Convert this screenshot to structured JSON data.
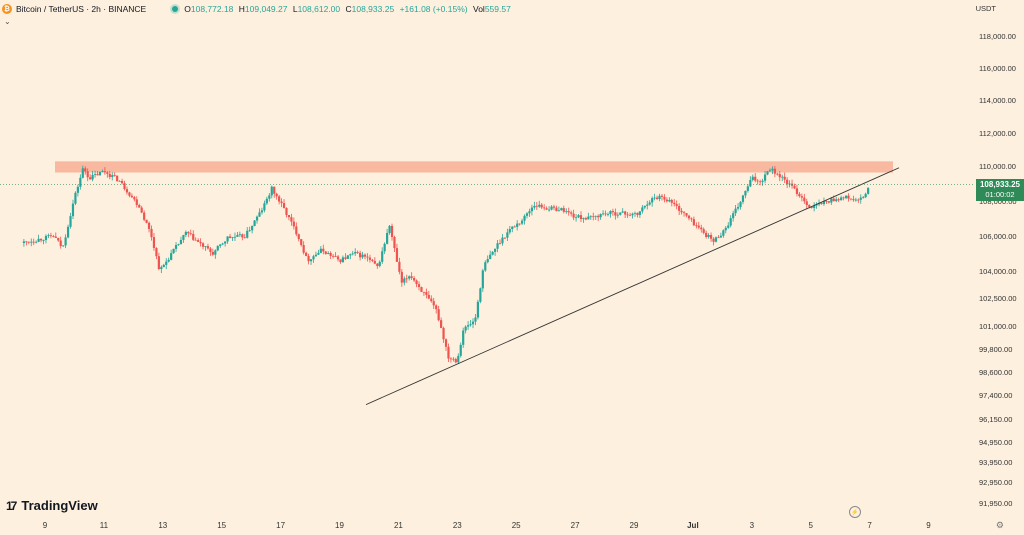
{
  "header": {
    "symbol": "Bitcoin / TetherUS · 2h · BINANCE",
    "coin_glyph": "₿",
    "open_label": "O",
    "open": "108,772.18",
    "high_label": "H",
    "high": "109,049.27",
    "low_label": "L",
    "low": "108,612.00",
    "close_label": "C",
    "close": "108,933.25",
    "change": "+161.08 (+0.15%)",
    "vol_label": "Vol",
    "vol": "559.57",
    "collapse_glyph": "⌄"
  },
  "currency": "USDT",
  "brand": {
    "mark": "17",
    "name": "TradingView"
  },
  "last_price": {
    "price": "108,933.25",
    "countdown": "01:00:02"
  },
  "colors": {
    "up": "#26a69a",
    "down": "#ef5350",
    "accent": "#2e8b57",
    "resistance": "#f8b9a0",
    "trendline": "#333333",
    "background": "#fdf0de"
  },
  "chart_data": {
    "type": "candlestick",
    "title": "",
    "y_axis": {
      "labels": [
        "118,000.00",
        "116,000.00",
        "114,000.00",
        "112,000.00",
        "110,000.00",
        "108,000.00",
        "106,000.00",
        "104,000.00",
        "102,500.00",
        "101,000.00",
        "99,800.00",
        "98,600.00",
        "97,400.00",
        "96,150.00",
        "94,950.00",
        "93,950.00",
        "92,950.00",
        "91,950.00"
      ],
      "values": [
        118000,
        116000,
        114000,
        112000,
        110000,
        108000,
        106000,
        104000,
        102500,
        101000,
        99800,
        98600,
        97400,
        96150,
        94950,
        93950,
        92950,
        91950
      ]
    },
    "x_axis": {
      "labels": [
        "9",
        "11",
        "13",
        "15",
        "17",
        "19",
        "21",
        "23",
        "25",
        "27",
        "29",
        "Jul",
        "3",
        "5",
        "7",
        "9"
      ],
      "days": [
        9,
        11,
        13,
        15,
        17,
        19,
        21,
        23,
        25,
        27,
        29,
        31,
        33,
        35,
        37,
        39
      ]
    },
    "x_range_days": [
      8.2,
      40
    ],
    "price_path": [
      [
        8.2,
        105600
      ],
      [
        9.3,
        106000
      ],
      [
        9.6,
        105300
      ],
      [
        10.0,
        108200
      ],
      [
        10.3,
        109900
      ],
      [
        10.5,
        109300
      ],
      [
        11.0,
        109700
      ],
      [
        11.5,
        109200
      ],
      [
        12.2,
        107700
      ],
      [
        12.6,
        106100
      ],
      [
        12.9,
        104000
      ],
      [
        13.3,
        105000
      ],
      [
        13.8,
        106200
      ],
      [
        14.3,
        105500
      ],
      [
        14.7,
        105000
      ],
      [
        15.2,
        105900
      ],
      [
        15.8,
        106000
      ],
      [
        16.4,
        107600
      ],
      [
        16.7,
        108700
      ],
      [
        17.1,
        107600
      ],
      [
        17.6,
        106000
      ],
      [
        17.9,
        104600
      ],
      [
        18.4,
        105200
      ],
      [
        19.0,
        104600
      ],
      [
        19.5,
        105000
      ],
      [
        19.9,
        104800
      ],
      [
        20.3,
        104200
      ],
      [
        20.7,
        106600
      ],
      [
        21.1,
        103300
      ],
      [
        21.4,
        103800
      ],
      [
        21.8,
        102900
      ],
      [
        22.3,
        101800
      ],
      [
        22.7,
        99400
      ],
      [
        23.0,
        99200
      ],
      [
        23.2,
        100800
      ],
      [
        23.6,
        101300
      ],
      [
        23.9,
        104300
      ],
      [
        24.4,
        105600
      ],
      [
        24.8,
        106400
      ],
      [
        25.2,
        106900
      ],
      [
        25.6,
        107800
      ],
      [
        26.0,
        107600
      ],
      [
        26.6,
        107500
      ],
      [
        27.0,
        107100
      ],
      [
        27.5,
        107000
      ],
      [
        28.0,
        107300
      ],
      [
        28.6,
        107300
      ],
      [
        29.1,
        107200
      ],
      [
        29.5,
        108000
      ],
      [
        29.9,
        108300
      ],
      [
        30.3,
        107900
      ],
      [
        30.8,
        107100
      ],
      [
        31.3,
        106300
      ],
      [
        31.7,
        105700
      ],
      [
        32.1,
        106400
      ],
      [
        32.6,
        107900
      ],
      [
        33.0,
        109300
      ],
      [
        33.3,
        109100
      ],
      [
        33.6,
        109900
      ],
      [
        33.9,
        109500
      ],
      [
        34.3,
        108900
      ],
      [
        34.7,
        108200
      ],
      [
        35.0,
        107600
      ],
      [
        35.4,
        107900
      ],
      [
        35.8,
        108100
      ],
      [
        36.2,
        108200
      ],
      [
        36.6,
        108000
      ],
      [
        36.8,
        108200
      ],
      [
        37.0,
        108900
      ]
    ],
    "resistance_zone": [
      109800,
      110100
    ],
    "trendline": [
      [
        19.9,
        96900
      ],
      [
        38.0,
        109900
      ]
    ],
    "last_price": 108933.25,
    "grid": false
  }
}
